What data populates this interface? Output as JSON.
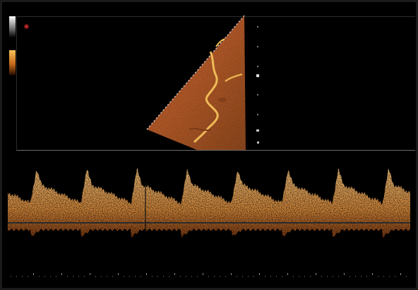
{
  "image": {
    "kind": "doppler-ultrasound-screenshot",
    "indicator_color": "#b32222",
    "accent_color": "#c46a2a"
  },
  "sidebar_scales": [
    {
      "name": "grayscale-bar",
      "from": "#ffffff",
      "to": "#000000"
    },
    {
      "name": "color-bar",
      "from": "#f7c35a",
      "to": "#2a0e00"
    }
  ],
  "waveform": {
    "cycles_visible": 8
  }
}
